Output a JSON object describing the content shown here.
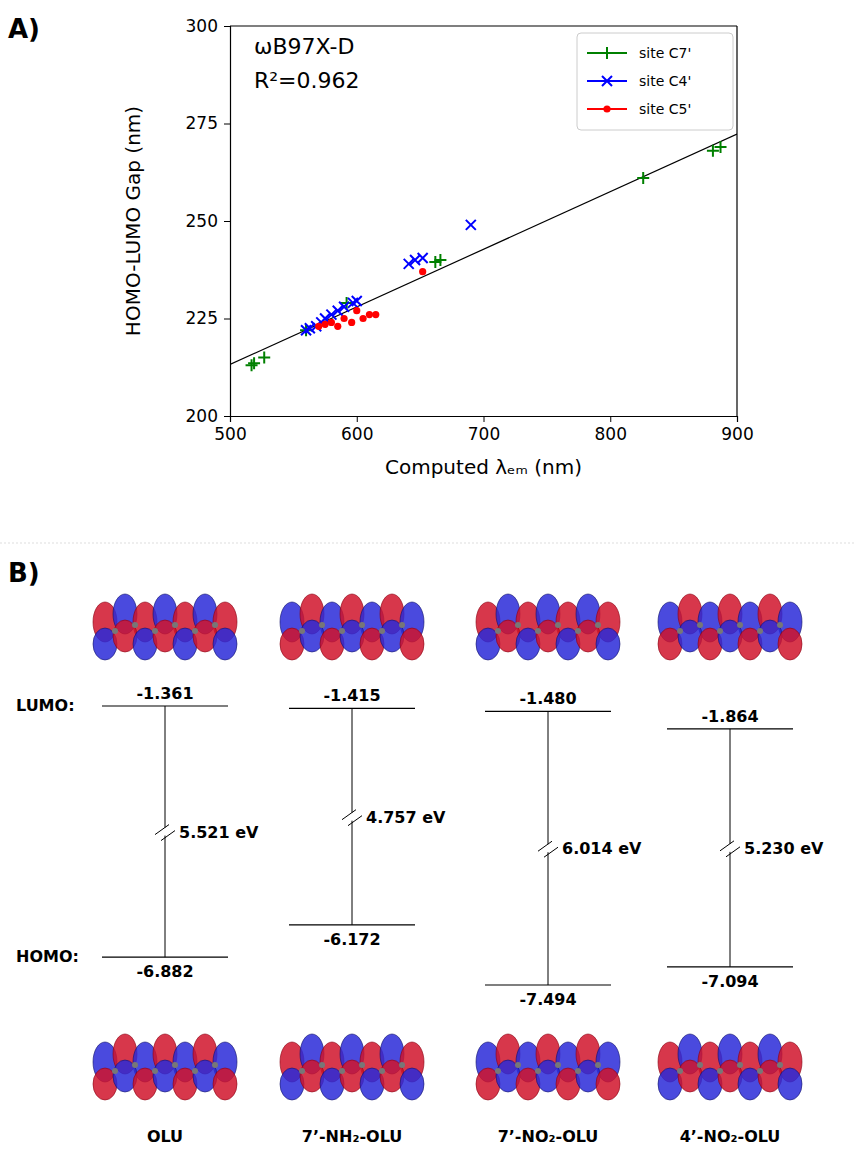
{
  "chart_data": {
    "type": "scatter",
    "panel": "A)",
    "annotations": [
      "ωB97X-D",
      "R²=0.962"
    ],
    "x_label": "Computed λₑₘ (nm)",
    "y_label": "HOMO-LUMO Gap (nm)",
    "xlim": [
      500,
      900
    ],
    "xticks": [
      500,
      600,
      700,
      800,
      900
    ],
    "ylim": [
      200,
      300
    ],
    "yticks": [
      200,
      225,
      250,
      275,
      300
    ],
    "grid": false,
    "legend": "upper right",
    "series": [
      {
        "name": "site C7'",
        "color": "#008000",
        "marker": "plus",
        "x": [
          517,
          519,
          527,
          560,
          592,
          662,
          666,
          826,
          881,
          887
        ],
        "values": [
          213,
          213.5,
          215,
          222,
          229,
          239.5,
          240,
          261,
          268,
          269
        ]
      },
      {
        "name": "site C4'",
        "color": "#0000ff",
        "marker": "x",
        "x": [
          560,
          563,
          568,
          572,
          575,
          580,
          585,
          590,
          597,
          600,
          641,
          646,
          652,
          690
        ],
        "values": [
          222,
          222.5,
          223,
          224,
          225,
          226,
          227,
          228,
          229,
          229.5,
          239,
          240,
          240.5,
          249
        ]
      },
      {
        "name": "site C5'",
        "color": "#ff0000",
        "marker": "circle",
        "x": [
          570,
          575,
          580,
          585,
          590,
          596,
          600,
          605,
          610,
          615,
          652
        ],
        "values": [
          223,
          223.5,
          224,
          223,
          225,
          224,
          227,
          225,
          226,
          226,
          237
        ]
      }
    ],
    "trend_line": {
      "color": "#000000",
      "x": [
        500,
        900
      ],
      "values": [
        213.2,
        272.3
      ]
    }
  },
  "diagram": {
    "panel": "B)",
    "lumo_label": "LUMO:",
    "homo_label": "HOMO:",
    "molecules": [
      {
        "name": "OLU",
        "lumo": {
          "value": -1.361,
          "label": "-1.361"
        },
        "homo": {
          "value": -6.882,
          "label": "-6.882"
        },
        "gap": {
          "value": 5.521,
          "label": "5.521 eV"
        }
      },
      {
        "name": "7’-NH₂-OLU",
        "lumo": {
          "value": -1.415,
          "label": "-1.415"
        },
        "homo": {
          "value": -6.172,
          "label": "-6.172"
        },
        "gap": {
          "value": 4.757,
          "label": "4.757 eV"
        }
      },
      {
        "name": "7’-NO₂-OLU",
        "lumo": {
          "value": -1.48,
          "label": "-1.480"
        },
        "homo": {
          "value": -7.494,
          "label": "-7.494"
        },
        "gap": {
          "value": 6.014,
          "label": "6.014 eV"
        }
      },
      {
        "name": "4’-NO₂-OLU",
        "lumo": {
          "value": -1.864,
          "label": "-1.864"
        },
        "homo": {
          "value": -7.094,
          "label": "-7.094"
        },
        "gap": {
          "value": 5.23,
          "label": "5.230 eV"
        }
      }
    ]
  }
}
